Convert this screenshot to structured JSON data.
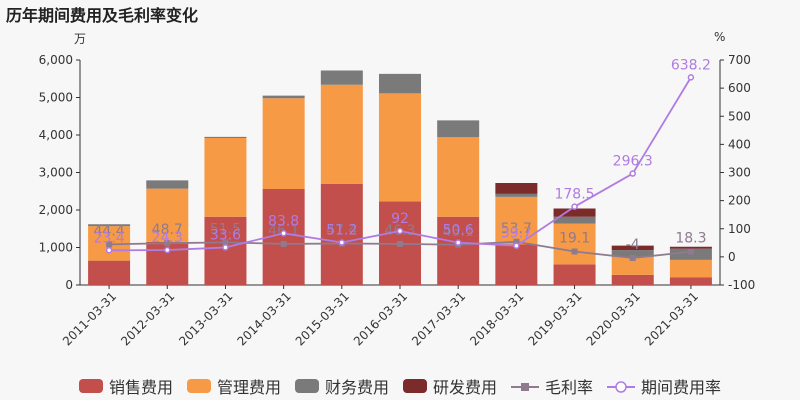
{
  "title": "历年期间费用及毛利率变化",
  "left_unit": "万",
  "right_unit": "%",
  "colors": {
    "sales": "#c24f4c",
    "management": "#f79a45",
    "finance": "#7a7a7a",
    "rd": "#7c2b2b",
    "gross_margin": "#8e7b8f",
    "period_rate": "#b07be3"
  },
  "chart_data": {
    "type": "bar",
    "stacked": true,
    "categories": [
      "2011-03-31",
      "2012-03-31",
      "2013-03-31",
      "2014-03-31",
      "2015-03-31",
      "2016-03-31",
      "2017-03-31",
      "2018-03-31",
      "2019-03-31",
      "2020-03-31",
      "2021-03-31"
    ],
    "series": [
      {
        "name": "销售费用",
        "axis": "left",
        "values": [
          650,
          1150,
          1820,
          2560,
          2700,
          2230,
          1820,
          1080,
          550,
          270,
          200
        ]
      },
      {
        "name": "管理费用",
        "axis": "left",
        "values": [
          920,
          1420,
          2100,
          2420,
          2640,
          2880,
          2120,
          1270,
          1090,
          480,
          470
        ]
      },
      {
        "name": "财务费用",
        "axis": "left",
        "values": [
          50,
          220,
          30,
          70,
          380,
          520,
          450,
          80,
          180,
          180,
          300
        ]
      },
      {
        "name": "研发费用",
        "axis": "left",
        "values": [
          0,
          0,
          0,
          0,
          0,
          0,
          0,
          290,
          220,
          120,
          50
        ]
      },
      {
        "name": "毛利率",
        "axis": "right",
        "type": "line",
        "values": [
          44.4,
          48.7,
          51.5,
          46.1,
          47.4,
          46.3,
          43.1,
          53.7,
          19.1,
          -4,
          18.3
        ]
      },
      {
        "name": "期间费用率",
        "axis": "right",
        "type": "line",
        "values": [
          23.4,
          24.3,
          33.6,
          83.8,
          51.2,
          92,
          50.6,
          39.7,
          178.5,
          296.3,
          638.2
        ]
      }
    ],
    "gross_margin_labels": [
      "44.4",
      "48.7",
      "51.5",
      "46.1",
      "47.4",
      "46.3",
      "43.1",
      "53.7",
      "19.1",
      "-4",
      "18.3"
    ],
    "period_rate_labels": [
      "23.4",
      "24.3",
      "33.6",
      "83.8",
      "51.2",
      "92",
      "50.6",
      "39.7",
      "178.5",
      "296.3",
      "638.2"
    ],
    "left_axis": {
      "min": 0,
      "max": 6000,
      "ticks": [
        "0",
        "1,000",
        "2,000",
        "3,000",
        "4,000",
        "5,000",
        "6,000"
      ]
    },
    "right_axis": {
      "min": -100,
      "max": 700,
      "ticks": [
        "-100",
        "0",
        "100",
        "200",
        "300",
        "400",
        "500",
        "600",
        "700"
      ]
    },
    "legend_position": "bottom",
    "grid": false
  },
  "legend": [
    {
      "label": "销售费用",
      "kind": "bar",
      "color_key": "sales"
    },
    {
      "label": "管理费用",
      "kind": "bar",
      "color_key": "management"
    },
    {
      "label": "财务费用",
      "kind": "bar",
      "color_key": "finance"
    },
    {
      "label": "研发费用",
      "kind": "bar",
      "color_key": "rd"
    },
    {
      "label": "毛利率",
      "kind": "line-square",
      "color_key": "gross_margin"
    },
    {
      "label": "期间费用率",
      "kind": "line-circle",
      "color_key": "period_rate"
    }
  ]
}
